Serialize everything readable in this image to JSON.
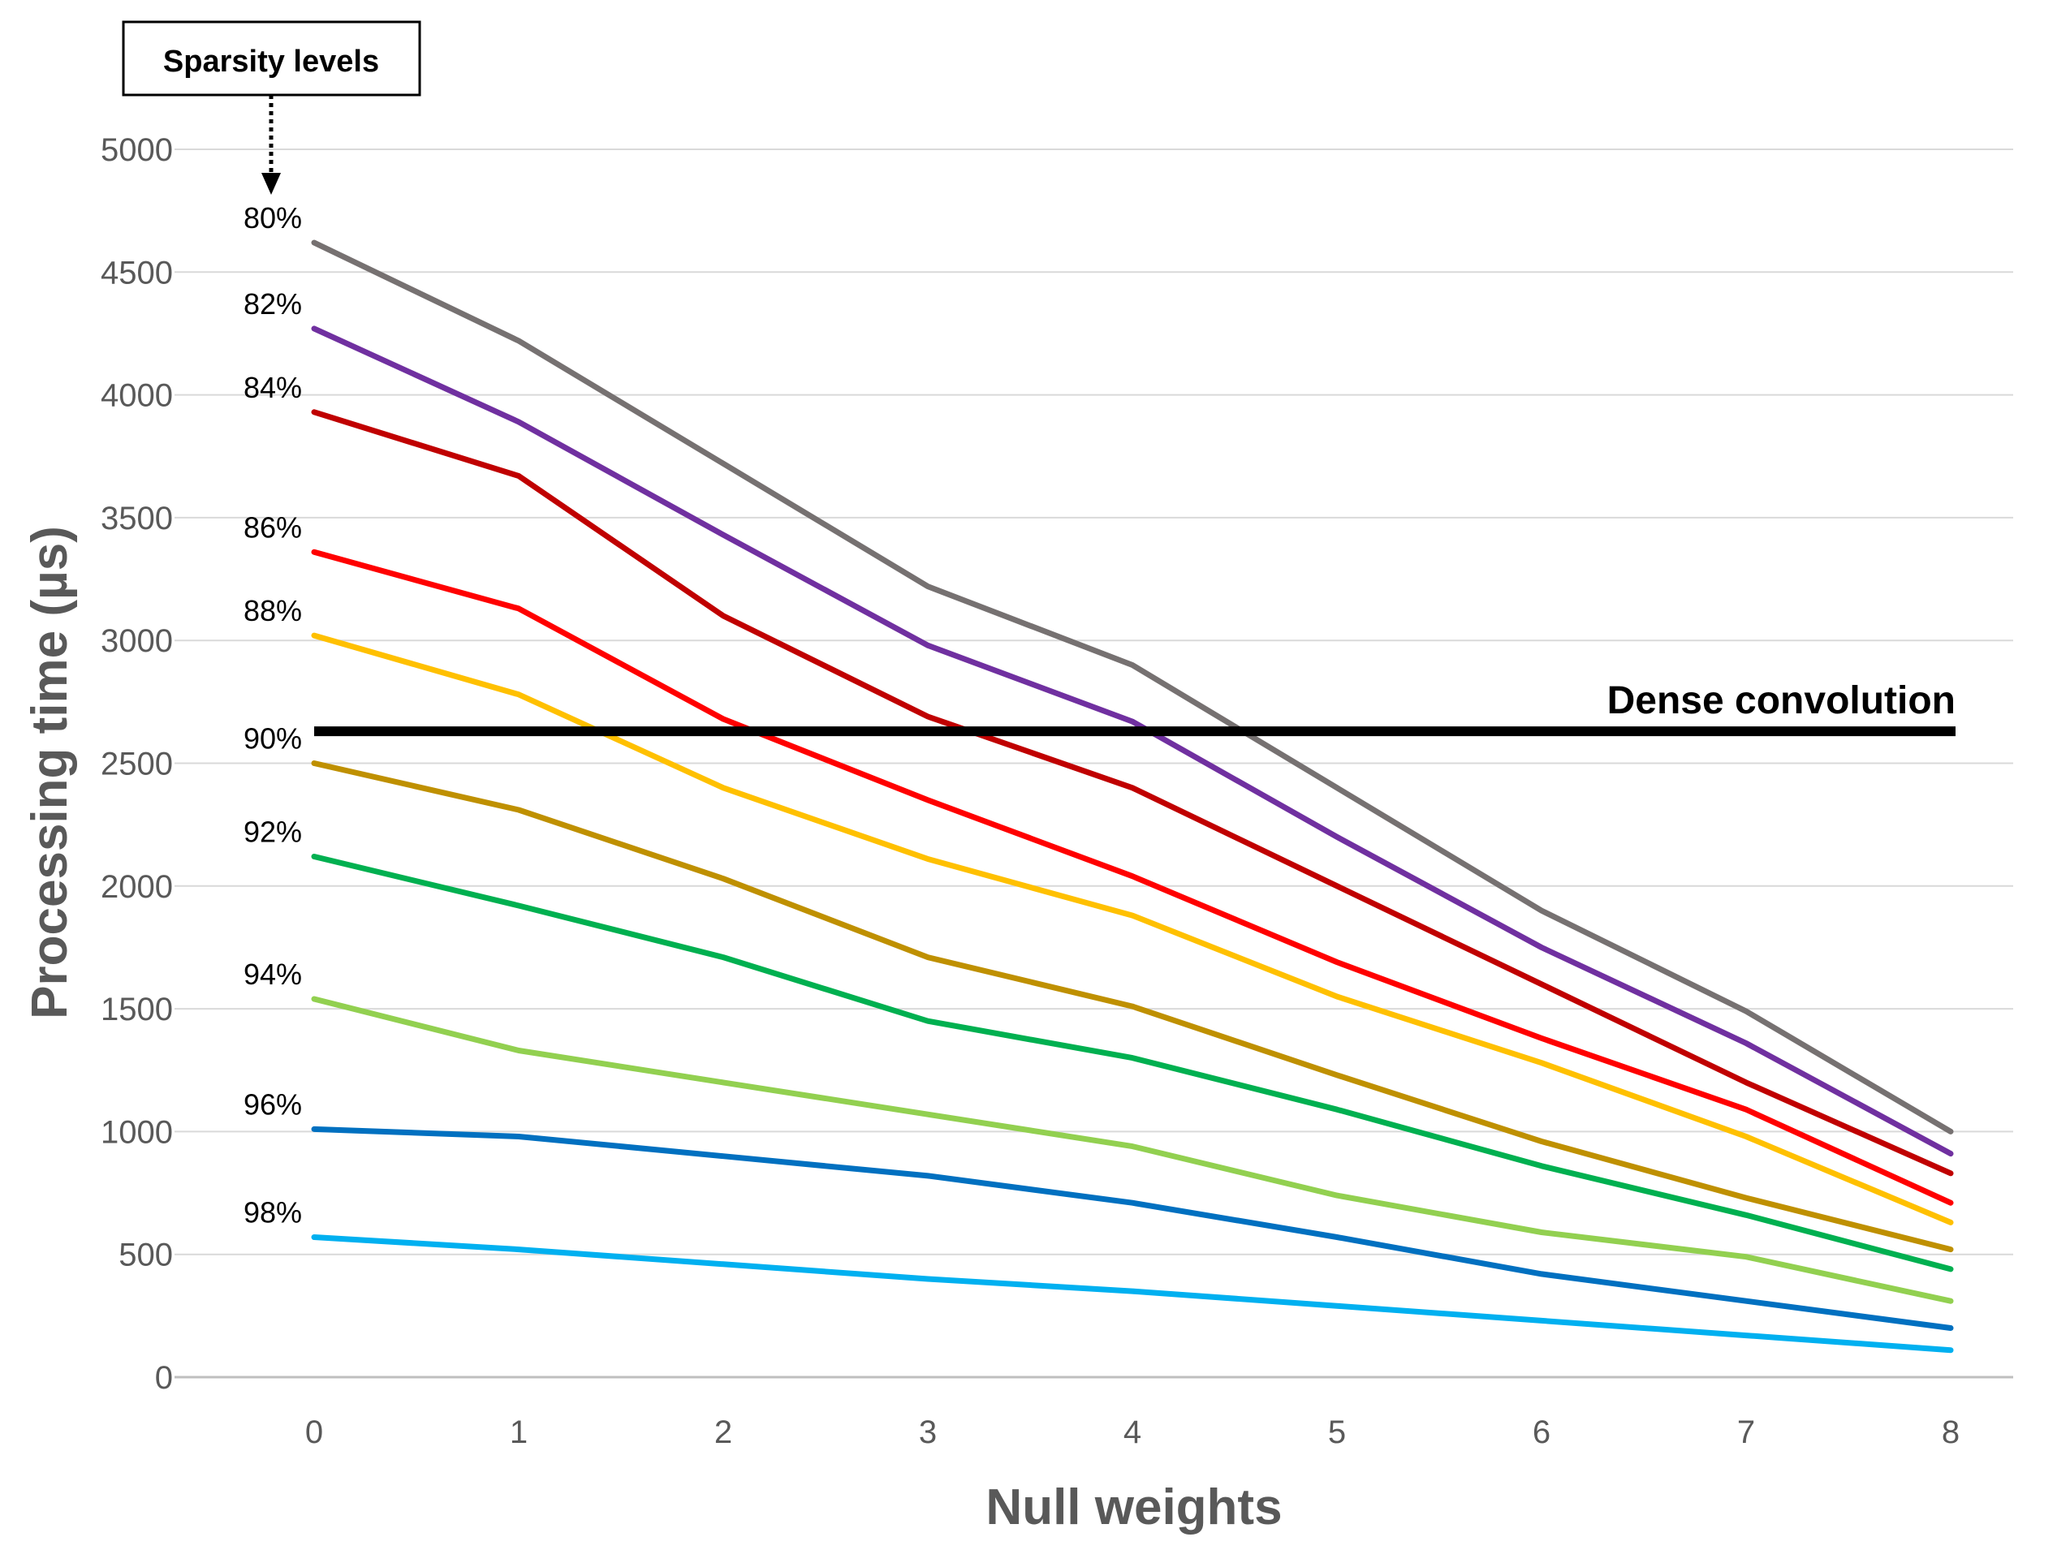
{
  "chart_data": {
    "type": "line",
    "title": "",
    "xlabel": "Null weights",
    "ylabel": "Processing time (µs)",
    "x": [
      0,
      1,
      2,
      3,
      4,
      5,
      6,
      7,
      8
    ],
    "xticks": [
      "0",
      "1",
      "2",
      "3",
      "4",
      "5",
      "6",
      "7",
      "8"
    ],
    "ylim": [
      0,
      5000
    ],
    "yticks": [
      "0",
      "500",
      "1000",
      "1500",
      "2000",
      "2500",
      "3000",
      "3500",
      "4000",
      "4500",
      "5000"
    ],
    "grid": "horizontal",
    "series": [
      {
        "name": "80%",
        "color": "#767171",
        "values": [
          4620,
          4220,
          3720,
          3220,
          2900,
          2400,
          1900,
          1490,
          1000
        ]
      },
      {
        "name": "82%",
        "color": "#7030A0",
        "values": [
          4270,
          3890,
          3430,
          2980,
          2670,
          2200,
          1750,
          1360,
          910
        ]
      },
      {
        "name": "84%",
        "color": "#C00000",
        "values": [
          3930,
          3670,
          3100,
          2690,
          2400,
          2000,
          1600,
          1200,
          830
        ]
      },
      {
        "name": "86%",
        "color": "#FF0000",
        "values": [
          3360,
          3130,
          2680,
          2350,
          2040,
          1690,
          1380,
          1090,
          710
        ]
      },
      {
        "name": "88%",
        "color": "#FFC000",
        "values": [
          3020,
          2780,
          2400,
          2110,
          1880,
          1550,
          1280,
          980,
          630
        ]
      },
      {
        "name": "90%",
        "color": "#BF9000",
        "values": [
          2500,
          2310,
          2030,
          1710,
          1510,
          1230,
          960,
          730,
          520
        ]
      },
      {
        "name": "92%",
        "color": "#00B050",
        "values": [
          2120,
          1920,
          1710,
          1450,
          1300,
          1090,
          860,
          660,
          440
        ]
      },
      {
        "name": "94%",
        "color": "#92D050",
        "values": [
          1540,
          1330,
          1200,
          1070,
          940,
          740,
          590,
          490,
          310
        ]
      },
      {
        "name": "96%",
        "color": "#0070C0",
        "values": [
          1010,
          980,
          900,
          820,
          710,
          570,
          420,
          310,
          200
        ]
      },
      {
        "name": "98%",
        "color": "#00B0F0",
        "values": [
          570,
          520,
          460,
          400,
          350,
          290,
          230,
          170,
          110
        ]
      }
    ],
    "reference_line": {
      "label": "Dense convolution",
      "value": 2630,
      "color": "#000000"
    },
    "callout": {
      "label": "Sparsity levels"
    }
  }
}
